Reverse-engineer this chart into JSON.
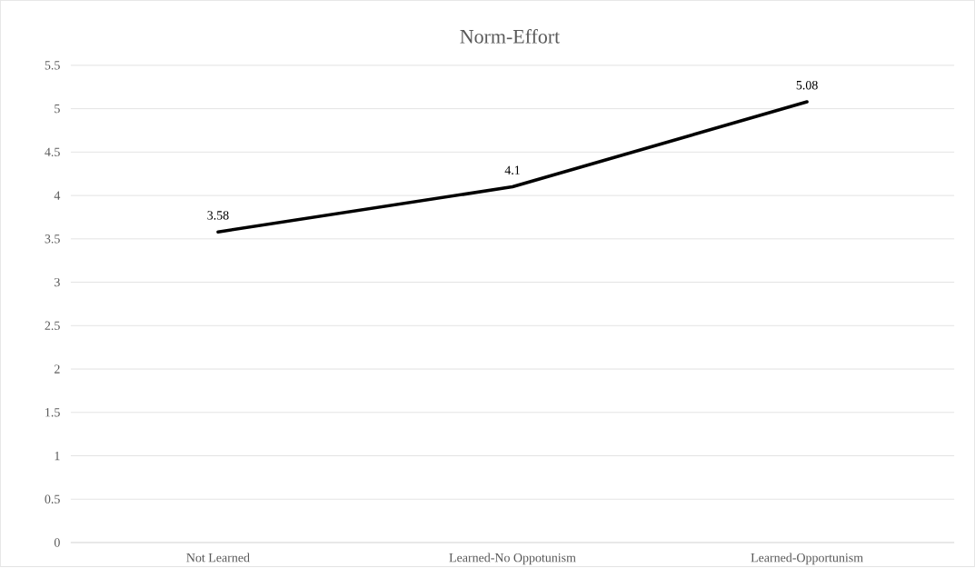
{
  "chart_data": {
    "type": "line",
    "title": "Norm-Effort",
    "categories": [
      "Not Learned",
      "Learned-No Oppotunism",
      "Learned-Opportunism"
    ],
    "values": [
      3.58,
      4.1,
      5.08
    ],
    "color": "#000000",
    "ylim": [
      0,
      5.5
    ],
    "yticks": [
      0,
      0.5,
      1,
      1.5,
      2,
      2.5,
      3,
      3.5,
      4,
      4.5,
      5,
      5.5
    ],
    "grid": "y",
    "data_labels": true
  }
}
